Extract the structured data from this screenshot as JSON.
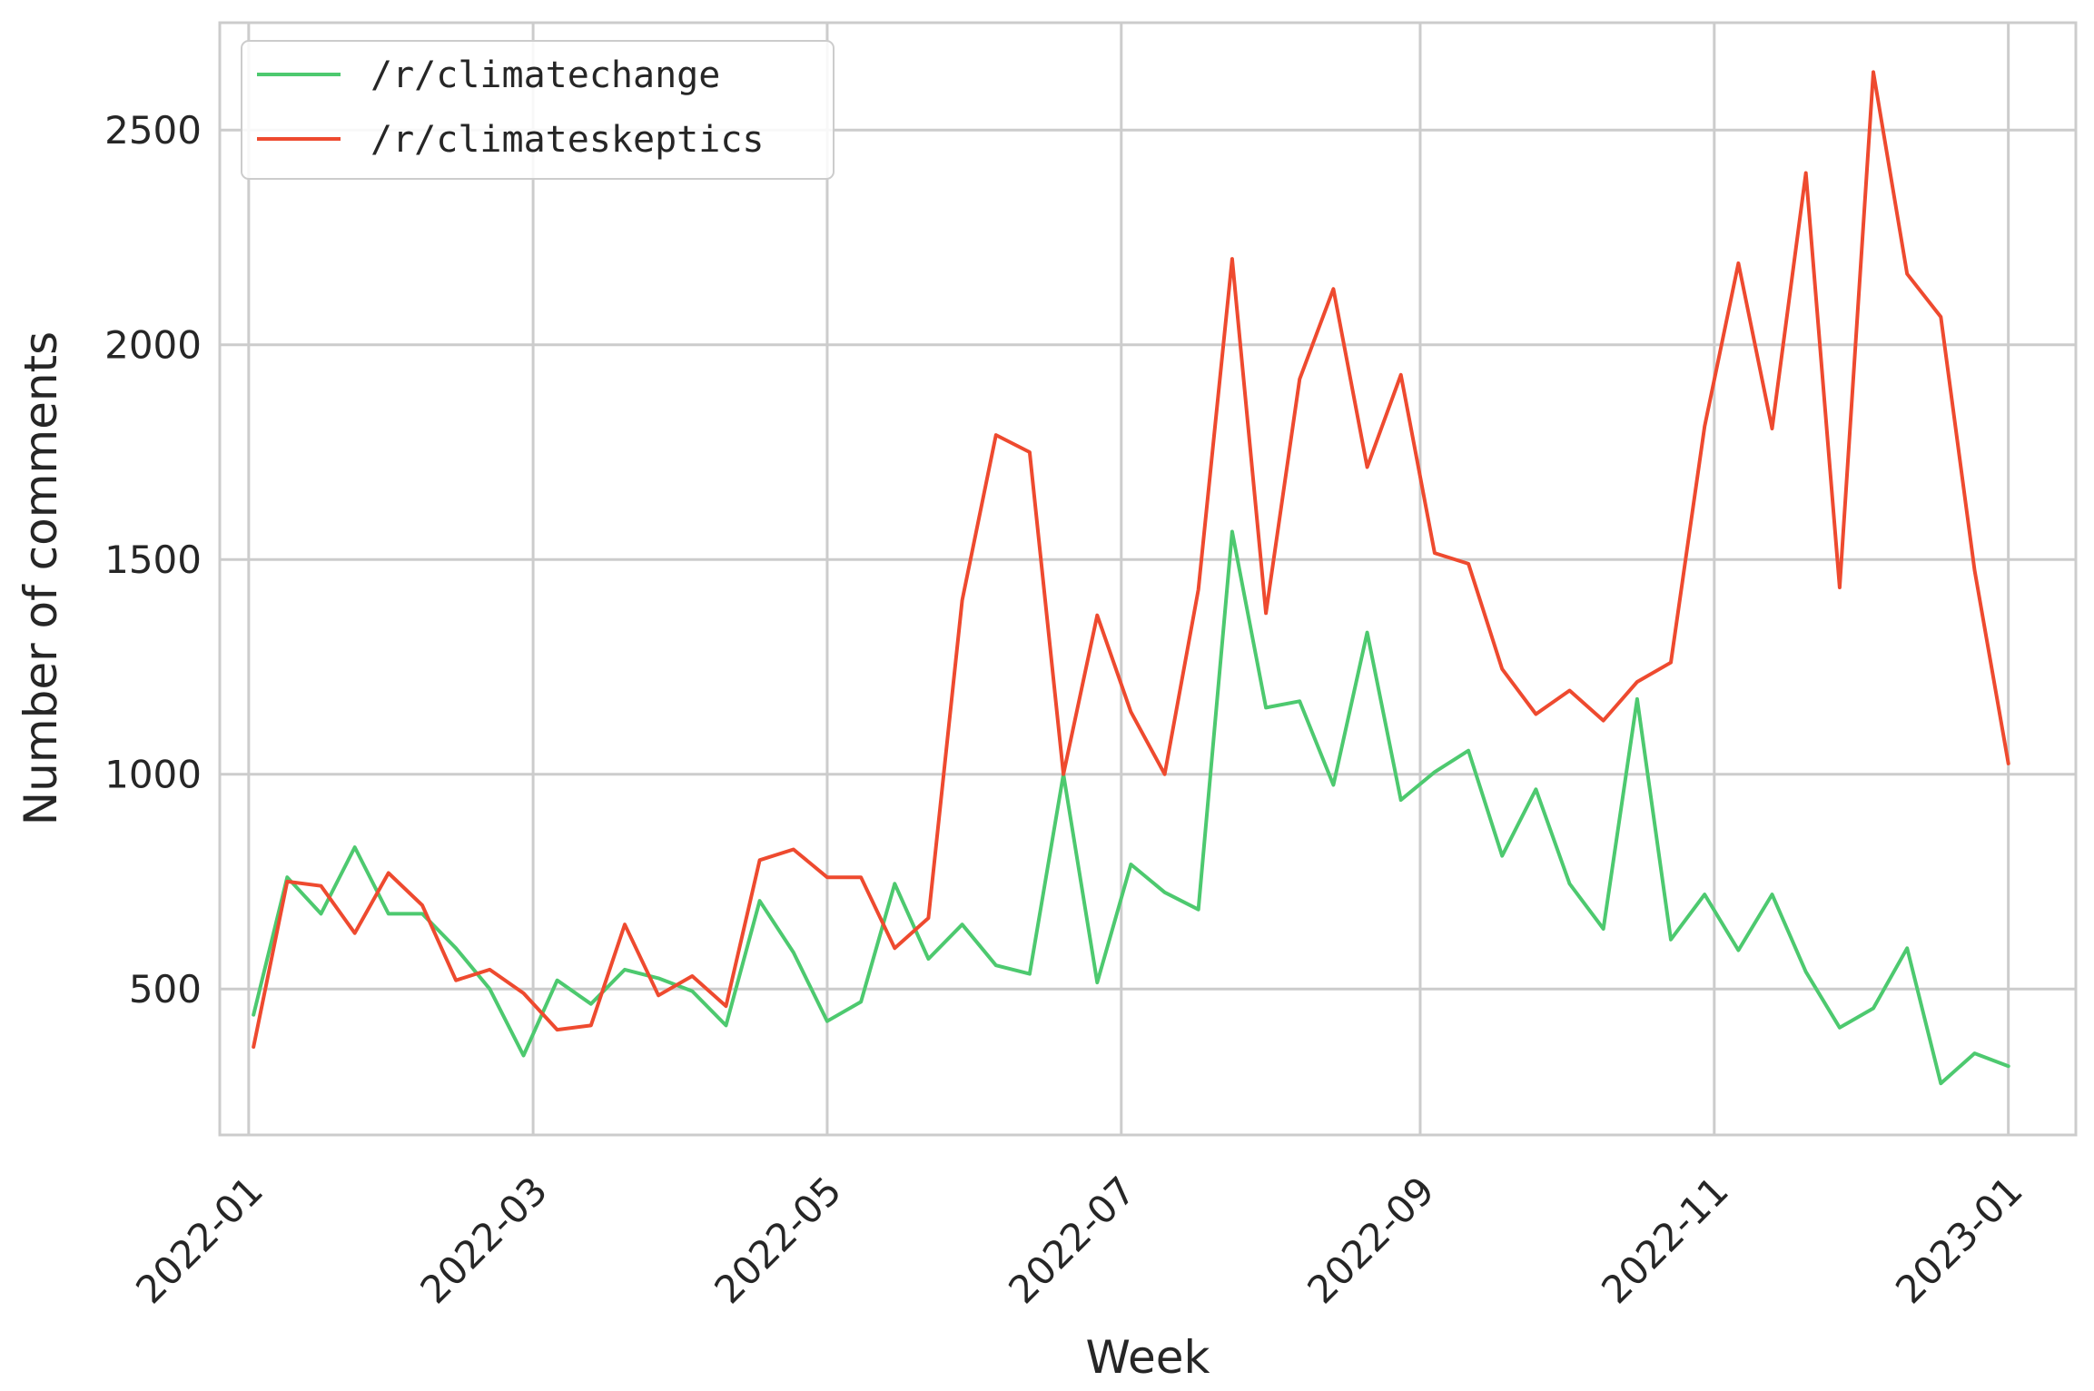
{
  "chart_data": {
    "type": "line",
    "xlabel": "Week",
    "ylabel": "Number of comments",
    "x_ticks": [
      "2022-01",
      "2022-03",
      "2022-05",
      "2022-07",
      "2022-09",
      "2022-11",
      "2023-01"
    ],
    "y_ticks": [
      500,
      1000,
      1500,
      2000,
      2500
    ],
    "ylim": [
      160,
      2750
    ],
    "xlim": [
      "2021-12-26",
      "2023-01-15"
    ],
    "grid": true,
    "legend_position": "top-left",
    "x": [
      "2022-01-02",
      "2022-01-09",
      "2022-01-16",
      "2022-01-23",
      "2022-01-30",
      "2022-02-06",
      "2022-02-13",
      "2022-02-20",
      "2022-02-27",
      "2022-03-06",
      "2022-03-13",
      "2022-03-20",
      "2022-03-27",
      "2022-04-03",
      "2022-04-10",
      "2022-04-17",
      "2022-04-24",
      "2022-05-01",
      "2022-05-08",
      "2022-05-15",
      "2022-05-22",
      "2022-05-29",
      "2022-06-05",
      "2022-06-12",
      "2022-06-19",
      "2022-06-26",
      "2022-07-03",
      "2022-07-10",
      "2022-07-17",
      "2022-07-24",
      "2022-07-31",
      "2022-08-07",
      "2022-08-14",
      "2022-08-21",
      "2022-08-28",
      "2022-09-04",
      "2022-09-11",
      "2022-09-18",
      "2022-09-25",
      "2022-10-02",
      "2022-10-09",
      "2022-10-16",
      "2022-10-23",
      "2022-10-30",
      "2022-11-06",
      "2022-11-13",
      "2022-11-20",
      "2022-11-27",
      "2022-12-04",
      "2022-12-11",
      "2022-12-18",
      "2022-12-25",
      "2023-01-01"
    ],
    "series": [
      {
        "name": "/r/climatechange",
        "color": "#4dc96f",
        "values": [
          440,
          760,
          675,
          830,
          675,
          675,
          595,
          500,
          345,
          520,
          465,
          545,
          525,
          495,
          415,
          705,
          585,
          425,
          470,
          745,
          570,
          650,
          555,
          535,
          1000,
          515,
          790,
          725,
          685,
          1565,
          1155,
          1170,
          975,
          1330,
          940,
          1005,
          1055,
          810,
          965,
          745,
          640,
          1175,
          615,
          720,
          590,
          720,
          540,
          410,
          455,
          595,
          280,
          350,
          320
        ]
      },
      {
        "name": "/r/climateskeptics",
        "color": "#ee4a2f",
        "values": [
          365,
          750,
          740,
          630,
          770,
          695,
          520,
          545,
          490,
          405,
          415,
          650,
          485,
          530,
          460,
          800,
          825,
          760,
          760,
          595,
          665,
          1405,
          1790,
          1750,
          1000,
          1370,
          1145,
          1000,
          1430,
          2200,
          1375,
          1920,
          2130,
          1715,
          1930,
          1515,
          1490,
          1245,
          1140,
          1195,
          1125,
          1215,
          1260,
          1810,
          2190,
          1805,
          2400,
          1435,
          2635,
          2165,
          2065,
          1475,
          1025
        ]
      }
    ]
  }
}
